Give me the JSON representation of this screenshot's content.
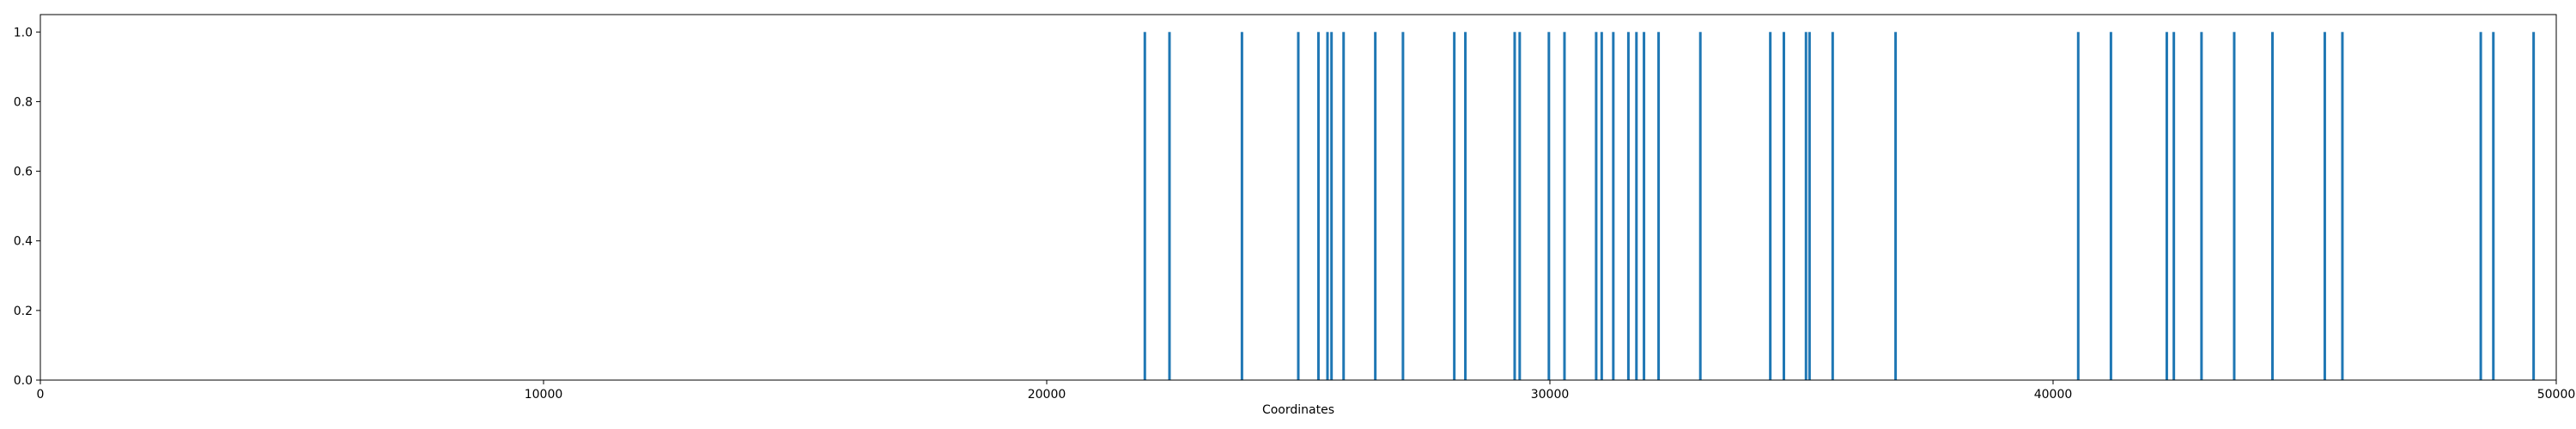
{
  "chart_data": {
    "type": "bar",
    "title": "",
    "xlabel": "Coordinates",
    "ylabel": "",
    "xlim": [
      0,
      50000
    ],
    "ylim": [
      0.0,
      1.05
    ],
    "grid": false,
    "x_ticks": [
      0,
      10000,
      20000,
      30000,
      40000,
      50000
    ],
    "x_tick_labels": [
      "0",
      "10000",
      "20000",
      "30000",
      "40000",
      "50000"
    ],
    "y_ticks": [
      0.0,
      0.2,
      0.4,
      0.6,
      0.8,
      1.0
    ],
    "y_tick_labels": [
      "0.0",
      "0.2",
      "0.4",
      "0.6",
      "0.8",
      "1.0"
    ],
    "series_color": "#1f77b4",
    "x": [
      21950,
      22440,
      23880,
      25000,
      25400,
      25580,
      25660,
      25900,
      26530,
      27080,
      28100,
      28320,
      29300,
      29400,
      29980,
      30290,
      30920,
      31030,
      31260,
      31560,
      31720,
      31870,
      32160,
      32990,
      34380,
      34650,
      35090,
      35160,
      35620,
      36870,
      40500,
      41150,
      42260,
      42400,
      42950,
      43600,
      44360,
      45400,
      45750,
      48500,
      48750,
      49550
    ],
    "values": [
      1.0,
      1.0,
      1.0,
      1.0,
      1.0,
      1.0,
      1.0,
      1.0,
      1.0,
      1.0,
      1.0,
      1.0,
      1.0,
      1.0,
      1.0,
      1.0,
      1.0,
      1.0,
      1.0,
      1.0,
      1.0,
      1.0,
      1.0,
      1.0,
      1.0,
      1.0,
      1.0,
      1.0,
      1.0,
      1.0,
      1.0,
      1.0,
      1.0,
      1.0,
      1.0,
      1.0,
      1.0,
      1.0,
      1.0,
      1.0,
      1.0,
      1.0
    ]
  }
}
